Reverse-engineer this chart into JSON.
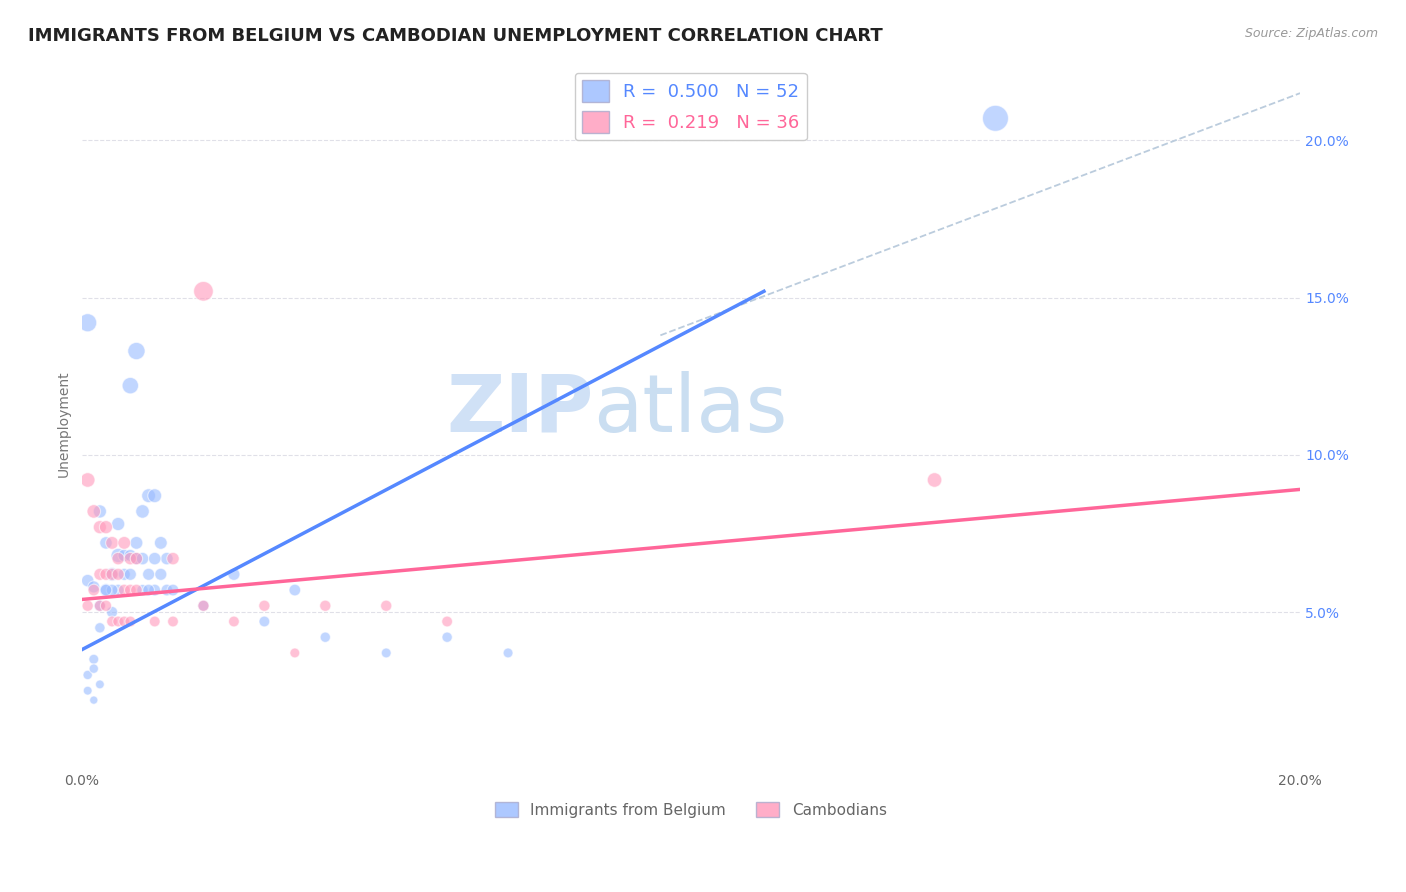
{
  "title": "IMMIGRANTS FROM BELGIUM VS CAMBODIAN UNEMPLOYMENT CORRELATION CHART",
  "source": "Source: ZipAtlas.com",
  "ylabel": "Unemployment",
  "xlim": [
    0.0,
    0.2
  ],
  "ylim": [
    0.0,
    0.22
  ],
  "yticks": [
    0.05,
    0.1,
    0.15,
    0.2
  ],
  "ytick_labels": [
    "5.0%",
    "10.0%",
    "15.0%",
    "20.0%"
  ],
  "xticks": [
    0.0,
    0.05,
    0.1,
    0.15,
    0.2
  ],
  "xtick_labels": [
    "0.0%",
    "",
    "",
    "",
    "20.0%"
  ],
  "watermark_zip": "ZIP",
  "watermark_atlas": "atlas",
  "legend_line1": "R =  0.500   N = 52",
  "legend_line2": "R =  0.219   N = 36",
  "blue_color": "#99BBFF",
  "pink_color": "#FF99BB",
  "blue_line_color": "#5588FF",
  "pink_line_color": "#FF6699",
  "dashed_line_color": "#BBCCDD",
  "blue_scatter": [
    [
      0.001,
      0.06
    ],
    [
      0.002,
      0.035
    ],
    [
      0.001,
      0.03
    ],
    [
      0.003,
      0.045
    ],
    [
      0.002,
      0.058
    ],
    [
      0.005,
      0.062
    ],
    [
      0.004,
      0.057
    ],
    [
      0.006,
      0.068
    ],
    [
      0.005,
      0.05
    ],
    [
      0.003,
      0.052
    ],
    [
      0.004,
      0.072
    ],
    [
      0.003,
      0.082
    ],
    [
      0.006,
      0.078
    ],
    [
      0.007,
      0.068
    ],
    [
      0.008,
      0.068
    ],
    [
      0.009,
      0.067
    ],
    [
      0.007,
      0.062
    ],
    [
      0.006,
      0.057
    ],
    [
      0.005,
      0.057
    ],
    [
      0.004,
      0.057
    ],
    [
      0.008,
      0.062
    ],
    [
      0.009,
      0.072
    ],
    [
      0.01,
      0.067
    ],
    [
      0.011,
      0.062
    ],
    [
      0.012,
      0.057
    ],
    [
      0.013,
      0.062
    ],
    [
      0.01,
      0.057
    ],
    [
      0.011,
      0.057
    ],
    [
      0.014,
      0.057
    ],
    [
      0.015,
      0.057
    ],
    [
      0.014,
      0.067
    ],
    [
      0.013,
      0.072
    ],
    [
      0.012,
      0.067
    ],
    [
      0.01,
      0.082
    ],
    [
      0.011,
      0.087
    ],
    [
      0.012,
      0.087
    ],
    [
      0.008,
      0.122
    ],
    [
      0.009,
      0.133
    ],
    [
      0.025,
      0.062
    ],
    [
      0.03,
      0.047
    ],
    [
      0.02,
      0.052
    ],
    [
      0.035,
      0.057
    ],
    [
      0.04,
      0.042
    ],
    [
      0.05,
      0.037
    ],
    [
      0.06,
      0.042
    ],
    [
      0.07,
      0.037
    ],
    [
      0.001,
      0.025
    ],
    [
      0.002,
      0.022
    ],
    [
      0.002,
      0.032
    ],
    [
      0.003,
      0.027
    ],
    [
      0.15,
      0.207
    ],
    [
      0.001,
      0.142
    ]
  ],
  "pink_scatter": [
    [
      0.001,
      0.092
    ],
    [
      0.002,
      0.082
    ],
    [
      0.003,
      0.077
    ],
    [
      0.004,
      0.077
    ],
    [
      0.005,
      0.072
    ],
    [
      0.006,
      0.067
    ],
    [
      0.007,
      0.072
    ],
    [
      0.008,
      0.067
    ],
    [
      0.009,
      0.067
    ],
    [
      0.003,
      0.062
    ],
    [
      0.004,
      0.062
    ],
    [
      0.005,
      0.062
    ],
    [
      0.006,
      0.062
    ],
    [
      0.007,
      0.057
    ],
    [
      0.008,
      0.057
    ],
    [
      0.009,
      0.057
    ],
    [
      0.002,
      0.057
    ],
    [
      0.003,
      0.052
    ],
    [
      0.004,
      0.052
    ],
    [
      0.001,
      0.052
    ],
    [
      0.005,
      0.047
    ],
    [
      0.006,
      0.047
    ],
    [
      0.007,
      0.047
    ],
    [
      0.008,
      0.047
    ],
    [
      0.012,
      0.047
    ],
    [
      0.015,
      0.047
    ],
    [
      0.02,
      0.052
    ],
    [
      0.025,
      0.047
    ],
    [
      0.03,
      0.052
    ],
    [
      0.035,
      0.037
    ],
    [
      0.04,
      0.052
    ],
    [
      0.05,
      0.052
    ],
    [
      0.06,
      0.047
    ],
    [
      0.14,
      0.092
    ],
    [
      0.02,
      0.152
    ],
    [
      0.015,
      0.067
    ]
  ],
  "blue_sizes": [
    80,
    50,
    45,
    55,
    75,
    95,
    85,
    105,
    65,
    70,
    80,
    90,
    90,
    80,
    75,
    75,
    75,
    70,
    70,
    70,
    75,
    85,
    80,
    75,
    70,
    75,
    65,
    70,
    70,
    70,
    80,
    85,
    80,
    95,
    100,
    100,
    140,
    155,
    75,
    60,
    65,
    70,
    55,
    50,
    55,
    50,
    40,
    35,
    45,
    40,
    350,
    170
  ],
  "pink_sizes": [
    110,
    95,
    90,
    90,
    85,
    80,
    85,
    80,
    80,
    75,
    75,
    75,
    75,
    70,
    70,
    70,
    70,
    65,
    65,
    65,
    60,
    60,
    60,
    60,
    60,
    60,
    65,
    60,
    65,
    50,
    65,
    65,
    60,
    110,
    200,
    80
  ],
  "blue_trendline_x": [
    0.0,
    0.112
  ],
  "blue_trendline_y": [
    0.038,
    0.152
  ],
  "pink_trendline_x": [
    0.0,
    0.2
  ],
  "pink_trendline_y": [
    0.054,
    0.089
  ],
  "dashed_line_x": [
    0.095,
    0.2
  ],
  "dashed_line_y": [
    0.138,
    0.215
  ],
  "background_color": "#FFFFFF",
  "grid_color": "#E0E0E8",
  "title_fontsize": 13,
  "axis_label_fontsize": 10,
  "tick_fontsize": 10
}
